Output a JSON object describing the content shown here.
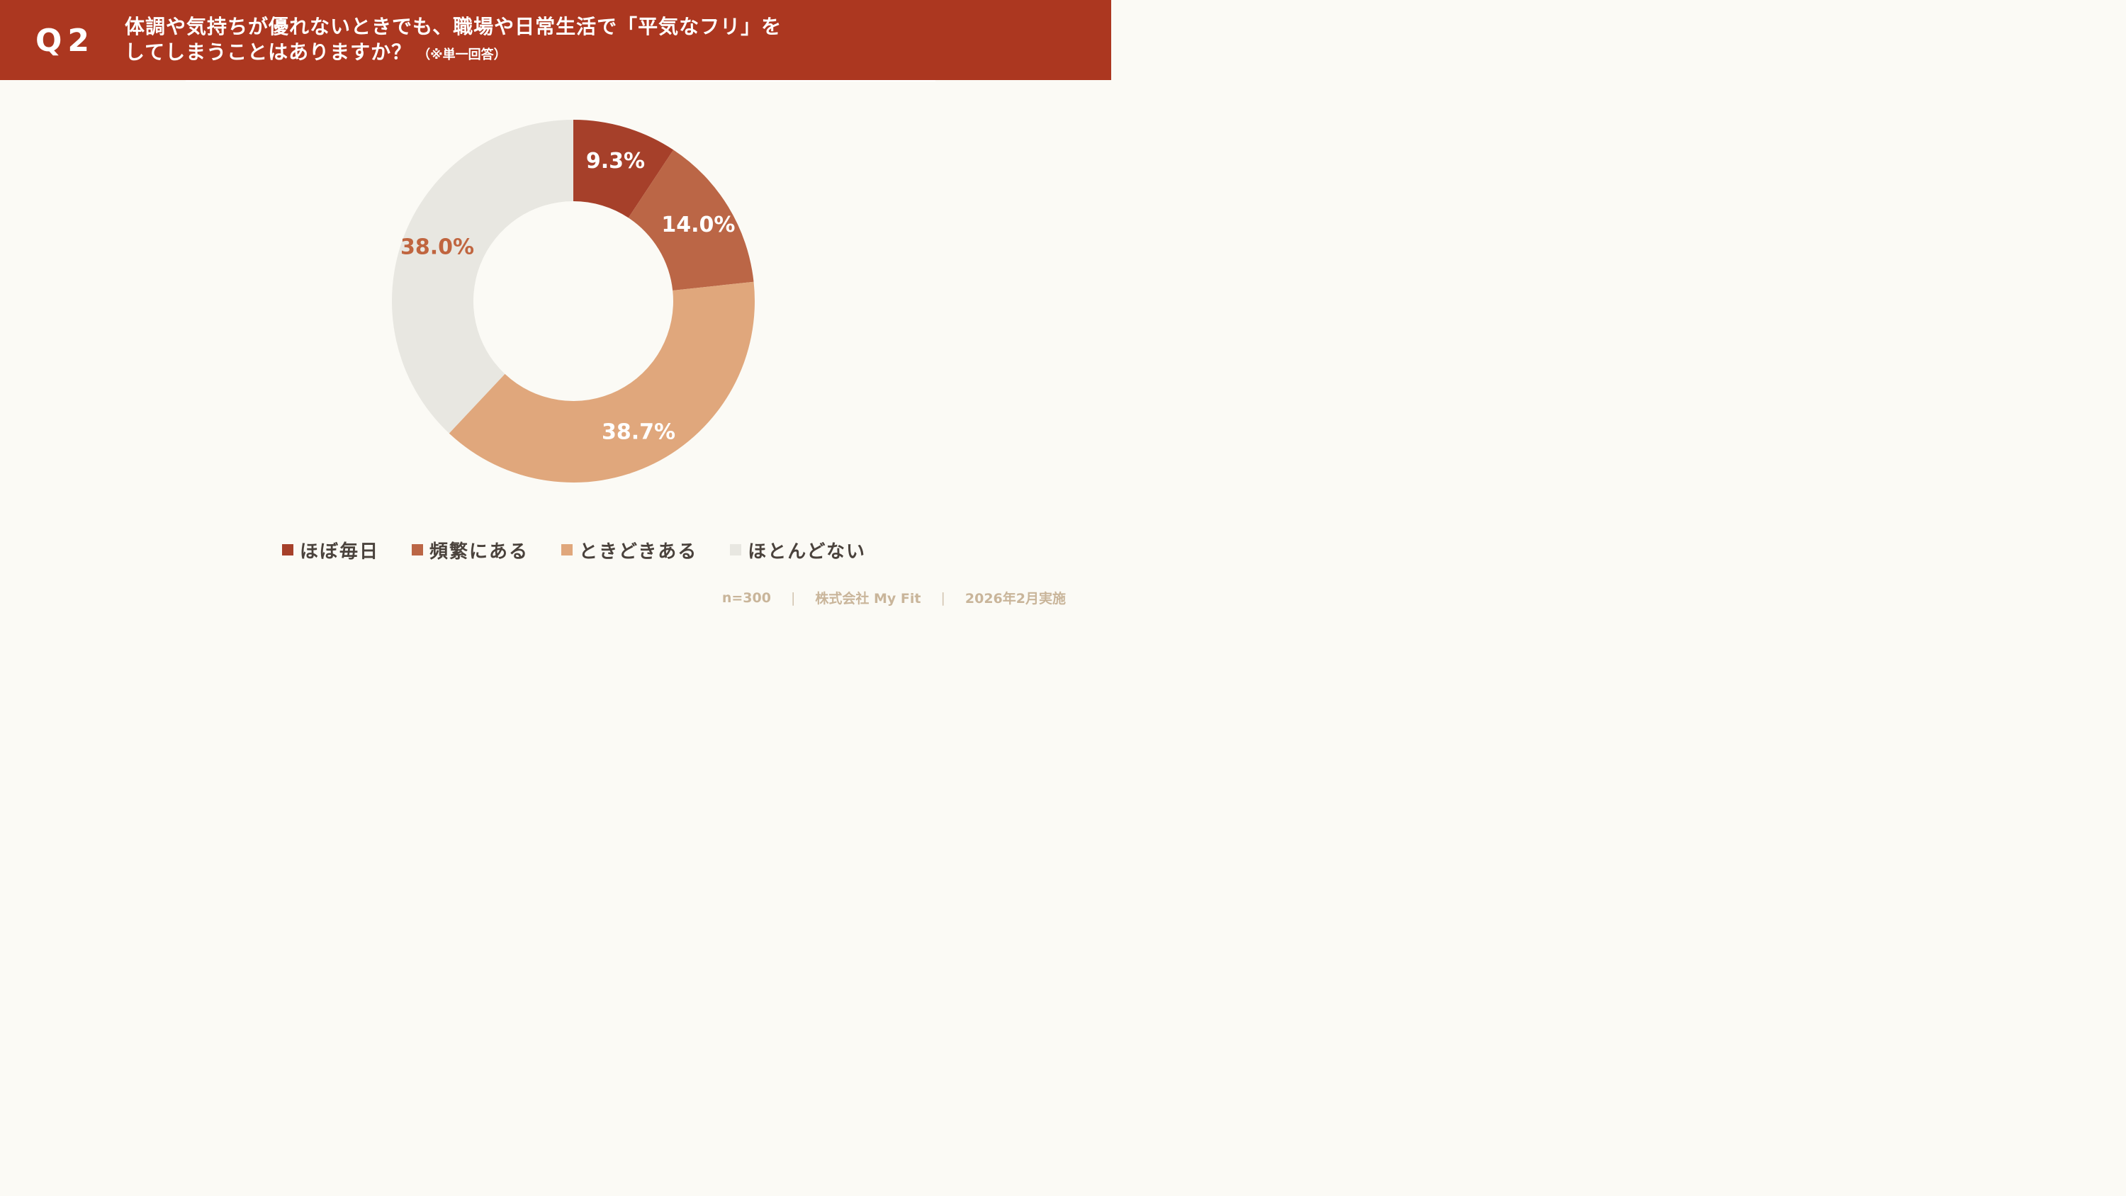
{
  "header": {
    "question_label": "Q2",
    "title_line1": "体調や気持ちが優れないときでも、職場や日常生活で「平気なフリ」を",
    "title_line2": "してしまうことはありますか？",
    "title_note": "（※単一回答）"
  },
  "chart_data": {
    "type": "pie",
    "variant": "donut",
    "title": "",
    "start_angle_deg": 0,
    "direction": "clockwise",
    "categories": [
      "ほぼ毎日",
      "頻繁にある",
      "ときどきある",
      "ほとんどない"
    ],
    "values": [
      9.3,
      14.0,
      38.7,
      38.0
    ],
    "labels": [
      "9.3%",
      "14.0%",
      "38.7%",
      "38.0%"
    ],
    "colors": [
      "#a6402a",
      "#bb6646",
      "#e0a77c",
      "#e8e7e1"
    ],
    "label_colors": [
      "#ffffff",
      "#ffffff",
      "#ffffff",
      "#c0653f"
    ],
    "legend_position": "bottom"
  },
  "footer": {
    "sample": "n=300",
    "company": "株式会社 My Fit",
    "date": "2026年2月実施"
  }
}
